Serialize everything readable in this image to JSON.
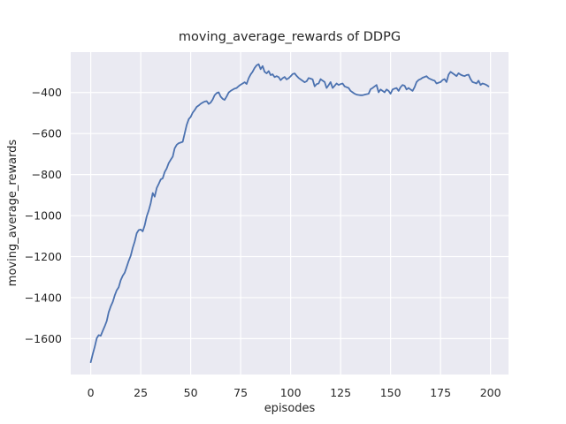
{
  "figure": {
    "background": "#ffffff"
  },
  "chart_data": {
    "type": "line",
    "title": "moving_average_rewards of DDPG",
    "xlabel": "episodes",
    "ylabel": "moving_average_rewards",
    "x_start": 0,
    "x_step": 1,
    "xlim": [
      -10,
      209
    ],
    "ylim": [
      -1775,
      -203
    ],
    "xticks": [
      0,
      25,
      50,
      75,
      100,
      125,
      150,
      175,
      200
    ],
    "yticks": [
      -400,
      -600,
      -800,
      -1000,
      -1200,
      -1400,
      -1600
    ],
    "grid": true,
    "legend": false,
    "style": {
      "axes_bg": "#eaeaf2",
      "grid_color": "#ffffff",
      "line_color": "#4c72b0",
      "text_color": "#262626",
      "line_width": 1.8
    },
    "series": [
      {
        "name": "moving_average_rewards",
        "values": [
          -1715,
          -1675,
          -1640,
          -1598,
          -1583,
          -1586,
          -1562,
          -1540,
          -1514,
          -1471,
          -1443,
          -1421,
          -1390,
          -1364,
          -1350,
          -1315,
          -1293,
          -1279,
          -1250,
          -1221,
          -1196,
          -1157,
          -1127,
          -1086,
          -1071,
          -1068,
          -1077,
          -1048,
          -1004,
          -975,
          -940,
          -890,
          -908,
          -866,
          -845,
          -824,
          -818,
          -788,
          -770,
          -744,
          -728,
          -713,
          -672,
          -655,
          -647,
          -644,
          -640,
          -600,
          -558,
          -530,
          -519,
          -498,
          -486,
          -470,
          -463,
          -455,
          -449,
          -444,
          -442,
          -456,
          -449,
          -434,
          -413,
          -403,
          -399,
          -420,
          -431,
          -436,
          -419,
          -400,
          -392,
          -386,
          -381,
          -378,
          -369,
          -362,
          -356,
          -350,
          -358,
          -330,
          -312,
          -298,
          -280,
          -267,
          -262,
          -286,
          -271,
          -299,
          -307,
          -295,
          -315,
          -311,
          -325,
          -320,
          -325,
          -340,
          -330,
          -324,
          -336,
          -330,
          -321,
          -310,
          -307,
          -319,
          -329,
          -336,
          -343,
          -350,
          -345,
          -329,
          -332,
          -336,
          -370,
          -359,
          -356,
          -335,
          -342,
          -349,
          -378,
          -364,
          -349,
          -378,
          -367,
          -356,
          -363,
          -359,
          -356,
          -370,
          -374,
          -378,
          -392,
          -399,
          -406,
          -410,
          -412,
          -413,
          -413,
          -410,
          -408,
          -406,
          -384,
          -378,
          -370,
          -363,
          -399,
          -385,
          -392,
          -399,
          -385,
          -392,
          -406,
          -385,
          -381,
          -378,
          -392,
          -374,
          -363,
          -367,
          -385,
          -378,
          -385,
          -392,
          -374,
          -349,
          -339,
          -335,
          -328,
          -324,
          -320,
          -330,
          -335,
          -339,
          -342,
          -356,
          -352,
          -349,
          -339,
          -335,
          -349,
          -313,
          -299,
          -306,
          -313,
          -320,
          -306,
          -313,
          -317,
          -320,
          -315,
          -313,
          -335,
          -349,
          -352,
          -356,
          -342,
          -363,
          -356,
          -359,
          -363,
          -370
        ]
      }
    ]
  }
}
